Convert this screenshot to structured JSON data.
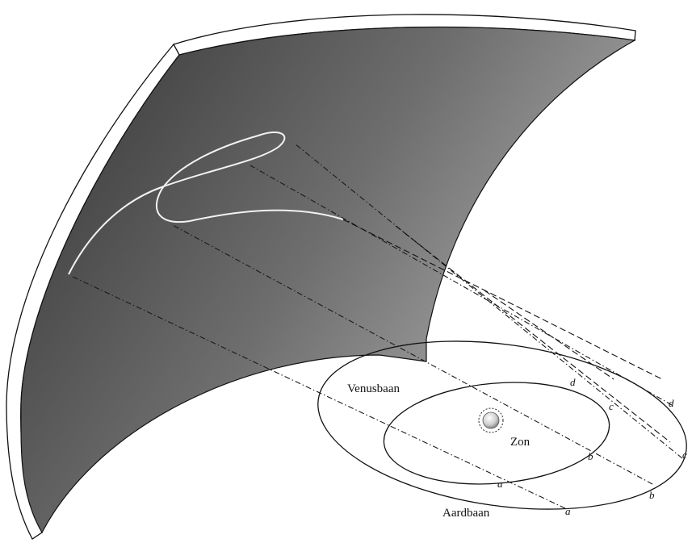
{
  "labels": {
    "venus_orbit": "Venusbaan",
    "earth_orbit": "Aardbaan",
    "sun": "Zon",
    "earth_positions": [
      "a",
      "b",
      "c",
      "d"
    ],
    "venus_positions": [
      "a",
      "b",
      "c",
      "d"
    ]
  },
  "colors": {
    "sky_dark": "#3a3a3a",
    "sky_light": "#a6a6a6",
    "retrograde_path": "#f2f2f2",
    "line": "#111111"
  }
}
